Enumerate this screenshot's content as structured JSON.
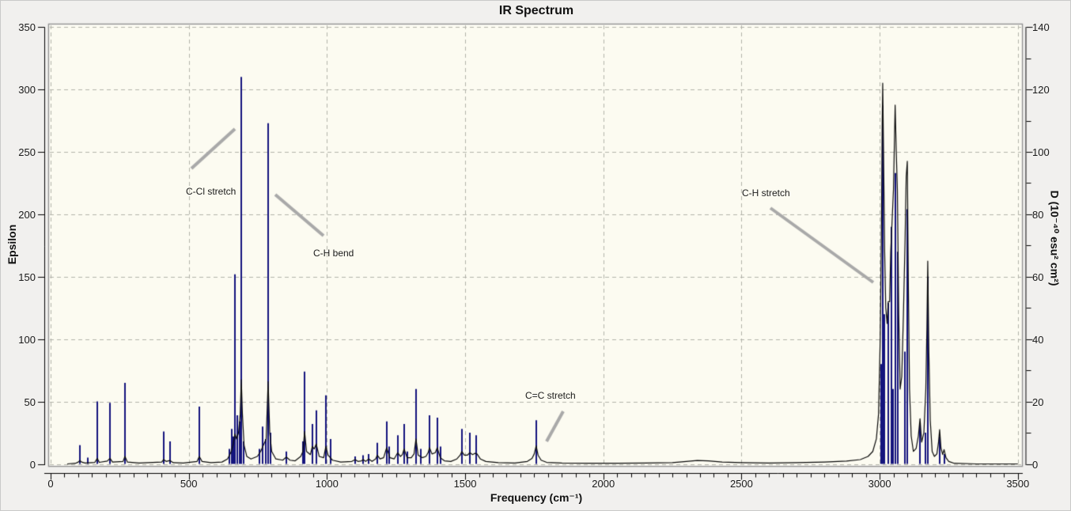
{
  "chart_data": {
    "type": "line",
    "title": "IR Spectrum",
    "legend": "none",
    "grid": "dashed",
    "x_axis": {
      "label": "Frequency (cm⁻¹)",
      "min": 0,
      "max": 3500,
      "major_tick": 500,
      "minor_tick": 50,
      "ticks": [
        0,
        500,
        1000,
        1500,
        2000,
        2500,
        3000,
        3500
      ]
    },
    "y_left": {
      "label": "Epsilon",
      "min": 0,
      "max": 350,
      "major_tick": 50,
      "ticks": [
        0,
        50,
        100,
        150,
        200,
        250,
        300,
        350
      ]
    },
    "y_right": {
      "label": "D (10⁻⁴⁰ esu² cm²)",
      "min": 0,
      "max": 140,
      "major_tick": 20,
      "minor_tick": 10,
      "ticks": [
        0,
        20,
        40,
        60,
        80,
        100,
        120,
        140
      ]
    },
    "series": [
      {
        "name": "epsilon-sticks",
        "render": "stick",
        "axis": "left",
        "color": "#14147d",
        "points": [
          [
            106,
            15
          ],
          [
            134,
            5
          ],
          [
            169,
            50
          ],
          [
            215,
            49
          ],
          [
            269,
            65
          ],
          [
            409,
            26
          ],
          [
            432,
            18
          ],
          [
            538,
            46
          ],
          [
            648,
            12
          ],
          [
            655,
            28
          ],
          [
            662,
            22
          ],
          [
            667,
            152
          ],
          [
            675,
            39
          ],
          [
            684,
            34
          ],
          [
            690,
            310
          ],
          [
            698,
            18
          ],
          [
            755,
            12
          ],
          [
            767,
            30
          ],
          [
            779,
            20
          ],
          [
            787,
            273
          ],
          [
            797,
            25
          ],
          [
            853,
            10
          ],
          [
            912,
            18
          ],
          [
            919,
            74
          ],
          [
            947,
            32
          ],
          [
            961,
            43
          ],
          [
            996,
            55
          ],
          [
            1013,
            20
          ],
          [
            1102,
            6
          ],
          [
            1131,
            7
          ],
          [
            1151,
            8
          ],
          [
            1182,
            17
          ],
          [
            1216,
            34
          ],
          [
            1225,
            14
          ],
          [
            1256,
            23
          ],
          [
            1279,
            32
          ],
          [
            1290,
            10
          ],
          [
            1322,
            60
          ],
          [
            1340,
            12
          ],
          [
            1371,
            39
          ],
          [
            1399,
            37
          ],
          [
            1410,
            14
          ],
          [
            1488,
            28
          ],
          [
            1517,
            25
          ],
          [
            1540,
            23
          ],
          [
            1757,
            35
          ],
          [
            3005,
            80
          ],
          [
            3011,
            287
          ],
          [
            3018,
            120
          ],
          [
            3031,
            129
          ],
          [
            3042,
            190
          ],
          [
            3049,
            60
          ],
          [
            3056,
            233
          ],
          [
            3065,
            170
          ],
          [
            3092,
            90
          ],
          [
            3100,
            204
          ],
          [
            3146,
            33
          ],
          [
            3165,
            25
          ],
          [
            3174,
            150
          ],
          [
            3217,
            22
          ],
          [
            3234,
            8
          ]
        ]
      },
      {
        "name": "broadened-envelope",
        "render": "line",
        "axis": "right",
        "color": "#0a0a0a",
        "points": [
          [
            60,
            0
          ],
          [
            90,
            0.2
          ],
          [
            100,
            0.6
          ],
          [
            106,
            1.1
          ],
          [
            112,
            0.6
          ],
          [
            125,
            0.3
          ],
          [
            160,
            0.5
          ],
          [
            169,
            1.8
          ],
          [
            176,
            0.5
          ],
          [
            205,
            0.9
          ],
          [
            215,
            1.8
          ],
          [
            224,
            0.6
          ],
          [
            262,
            0.8
          ],
          [
            269,
            2.4
          ],
          [
            278,
            0.6
          ],
          [
            320,
            0.3
          ],
          [
            402,
            0.6
          ],
          [
            409,
            1.4
          ],
          [
            418,
            0.8
          ],
          [
            432,
            1.1
          ],
          [
            444,
            0.4
          ],
          [
            480,
            0.3
          ],
          [
            530,
            0.8
          ],
          [
            538,
            2.4
          ],
          [
            548,
            0.8
          ],
          [
            580,
            0.4
          ],
          [
            620,
            0.6
          ],
          [
            640,
            1.6
          ],
          [
            652,
            3.6
          ],
          [
            660,
            6
          ],
          [
            667,
            9.6
          ],
          [
            673,
            8
          ],
          [
            680,
            10
          ],
          [
            686,
            16
          ],
          [
            690,
            27
          ],
          [
            694,
            16
          ],
          [
            700,
            6
          ],
          [
            710,
            2.4
          ],
          [
            725,
            1.6
          ],
          [
            748,
            2.4
          ],
          [
            760,
            4
          ],
          [
            770,
            6
          ],
          [
            780,
            8
          ],
          [
            787,
            26.4
          ],
          [
            793,
            10
          ],
          [
            800,
            4
          ],
          [
            815,
            1.6
          ],
          [
            840,
            1.2
          ],
          [
            853,
            2.2
          ],
          [
            866,
            1.2
          ],
          [
            885,
            1
          ],
          [
            905,
            2.4
          ],
          [
            913,
            4
          ],
          [
            919,
            10.4
          ],
          [
            926,
            4
          ],
          [
            940,
            3
          ],
          [
            947,
            5.6
          ],
          [
            954,
            4.8
          ],
          [
            961,
            6.4
          ],
          [
            972,
            2.4
          ],
          [
            988,
            2
          ],
          [
            996,
            5.6
          ],
          [
            1004,
            2.8
          ],
          [
            1020,
            1.2
          ],
          [
            1050,
            0.6
          ],
          [
            1090,
            0.8
          ],
          [
            1102,
            1.4
          ],
          [
            1112,
            0.8
          ],
          [
            1125,
            1
          ],
          [
            1131,
            1.4
          ],
          [
            1140,
            0.8
          ],
          [
            1151,
            1.6
          ],
          [
            1163,
            0.8
          ],
          [
            1176,
            1.6
          ],
          [
            1182,
            2.8
          ],
          [
            1192,
            1.6
          ],
          [
            1205,
            2
          ],
          [
            1216,
            5.2
          ],
          [
            1228,
            2
          ],
          [
            1243,
            1.6
          ],
          [
            1256,
            3.6
          ],
          [
            1266,
            2.4
          ],
          [
            1273,
            3
          ],
          [
            1279,
            4.8
          ],
          [
            1290,
            2
          ],
          [
            1305,
            2
          ],
          [
            1315,
            3.2
          ],
          [
            1322,
            8
          ],
          [
            1330,
            2.8
          ],
          [
            1345,
            2
          ],
          [
            1358,
            2.4
          ],
          [
            1366,
            3.6
          ],
          [
            1371,
            5.2
          ],
          [
            1380,
            3.2
          ],
          [
            1392,
            3.6
          ],
          [
            1399,
            5.2
          ],
          [
            1410,
            2
          ],
          [
            1425,
            1
          ],
          [
            1448,
            0.8
          ],
          [
            1470,
            1.6
          ],
          [
            1482,
            2.8
          ],
          [
            1488,
            4
          ],
          [
            1497,
            2.8
          ],
          [
            1508,
            2.8
          ],
          [
            1517,
            3.6
          ],
          [
            1527,
            3
          ],
          [
            1536,
            3.4
          ],
          [
            1543,
            3.2
          ],
          [
            1555,
            1.6
          ],
          [
            1575,
            0.8
          ],
          [
            1620,
            0.4
          ],
          [
            1680,
            0.3
          ],
          [
            1725,
            0.8
          ],
          [
            1742,
            1.8
          ],
          [
            1750,
            3.2
          ],
          [
            1757,
            5.8
          ],
          [
            1764,
            2.8
          ],
          [
            1775,
            1.2
          ],
          [
            1795,
            0.5
          ],
          [
            1850,
            0.3
          ],
          [
            1950,
            0.2
          ],
          [
            2050,
            0.2
          ],
          [
            2150,
            0.3
          ],
          [
            2250,
            0.4
          ],
          [
            2300,
            0.8
          ],
          [
            2340,
            1.1
          ],
          [
            2380,
            1
          ],
          [
            2430,
            0.6
          ],
          [
            2500,
            0.4
          ],
          [
            2600,
            0.3
          ],
          [
            2700,
            0.4
          ],
          [
            2800,
            0.6
          ],
          [
            2880,
            0.9
          ],
          [
            2930,
            1.4
          ],
          [
            2958,
            2.4
          ],
          [
            2975,
            4
          ],
          [
            2988,
            8
          ],
          [
            2996,
            16
          ],
          [
            3002,
            40
          ],
          [
            3006,
            72
          ],
          [
            3009,
            108
          ],
          [
            3011,
            122
          ],
          [
            3014,
            100
          ],
          [
            3018,
            68
          ],
          [
            3022,
            50
          ],
          [
            3027,
            45
          ],
          [
            3031,
            52
          ],
          [
            3036,
            52
          ],
          [
            3040,
            68
          ],
          [
            3045,
            78
          ],
          [
            3050,
            88
          ],
          [
            3056,
            115
          ],
          [
            3060,
            100
          ],
          [
            3064,
            88
          ],
          [
            3069,
            48
          ],
          [
            3074,
            24
          ],
          [
            3080,
            28
          ],
          [
            3086,
            48
          ],
          [
            3092,
            72
          ],
          [
            3096,
            92
          ],
          [
            3100,
            97
          ],
          [
            3104,
            56
          ],
          [
            3108,
            24
          ],
          [
            3114,
            9
          ],
          [
            3122,
            4
          ],
          [
            3132,
            5
          ],
          [
            3140,
            9
          ],
          [
            3146,
            14.5
          ],
          [
            3152,
            7
          ],
          [
            3160,
            10
          ],
          [
            3167,
            24
          ],
          [
            3171,
            44
          ],
          [
            3174,
            65
          ],
          [
            3178,
            36
          ],
          [
            3183,
            14
          ],
          [
            3190,
            4
          ],
          [
            3198,
            2.4
          ],
          [
            3207,
            3.2
          ],
          [
            3213,
            7
          ],
          [
            3217,
            11
          ],
          [
            3222,
            5
          ],
          [
            3228,
            3
          ],
          [
            3233,
            4.6
          ],
          [
            3240,
            2
          ],
          [
            3250,
            0.8
          ],
          [
            3270,
            0.2
          ],
          [
            3350,
            0
          ],
          [
            3500,
            0
          ]
        ]
      }
    ],
    "annotations": [
      {
        "label": "C-Cl stretch",
        "text": [
          234,
          234
        ],
        "line": [
          241,
          212,
          296,
          162
        ]
      },
      {
        "label": "C-H bend",
        "text": [
          395,
          312
        ],
        "line": [
          347,
          245,
          408,
          297
        ]
      },
      {
        "label": "C=C stretch",
        "text": [
          663,
          492
        ],
        "line": [
          690,
          557,
          711,
          519
        ]
      },
      {
        "label": "C-H stretch",
        "text": [
          937,
          236
        ],
        "line": [
          973,
          262,
          1103,
          356
        ]
      }
    ],
    "colors": {
      "background": "#f1f0ee",
      "plot_background": "#fcfbf1",
      "grid": "#b3b3aa",
      "axis": "#000000",
      "stick": "#14147d",
      "envelope": "#0a0a0a",
      "callout": "#a9a9a9",
      "frame": "#909090"
    }
  }
}
